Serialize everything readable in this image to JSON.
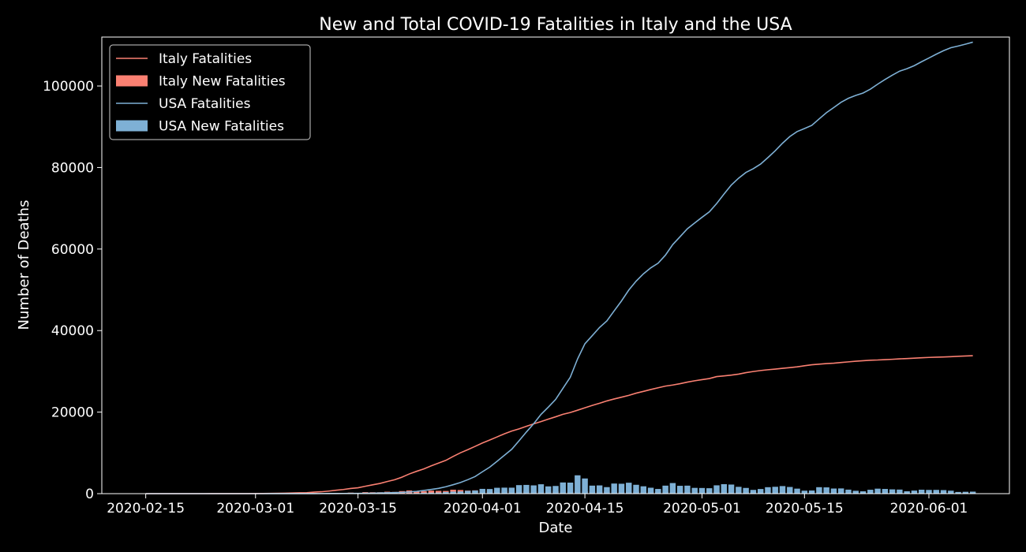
{
  "chart_data": {
    "type": "bar+line",
    "title": "New and Total COVID-19 Fatalities in Italy and the USA",
    "xlabel": "Date",
    "ylabel": "Number of Deaths",
    "x_start": "2020-02-15",
    "x_end": "2020-06-06",
    "xlim": [
      "2020-02-09",
      "2020-06-12"
    ],
    "ylim": [
      0,
      112000
    ],
    "x_ticks": [
      "2020-02-15",
      "2020-03-01",
      "2020-03-15",
      "2020-04-01",
      "2020-04-15",
      "2020-05-01",
      "2020-05-15",
      "2020-06-01"
    ],
    "y_ticks": [
      0,
      20000,
      40000,
      60000,
      80000,
      100000
    ],
    "legend_position": "top-left",
    "background": "#000000",
    "text_color": "#ffffff",
    "series": [
      {
        "name": "Italy Fatalities",
        "kind": "line",
        "color": "#fa8072",
        "values": [
          0,
          0,
          0,
          0,
          0,
          0,
          0,
          1,
          2,
          3,
          7,
          10,
          12,
          17,
          21,
          29,
          34,
          52,
          79,
          107,
          148,
          197,
          233,
          366,
          463,
          631,
          827,
          1016,
          1266,
          1441,
          1809,
          2158,
          2503,
          2978,
          3405,
          4032,
          4825,
          5476,
          6077,
          6820,
          7503,
          8165,
          9134,
          10023,
          10779,
          11591,
          12428,
          13155,
          13915,
          14681,
          15362,
          15887,
          16523,
          17127,
          17669,
          18279,
          18849,
          19468,
          19899,
          20465,
          21067,
          21645,
          22170,
          22745,
          23227,
          23660,
          24114,
          24648,
          25085,
          25549,
          25969,
          26384,
          26644,
          26977,
          27359,
          27682,
          27967,
          28236,
          28710,
          28884,
          29079,
          29315,
          29684,
          29958,
          30201,
          30395,
          30560,
          30739,
          30911,
          31106,
          31368,
          31610,
          31763,
          31908,
          32007,
          32169,
          32330,
          32486,
          32616,
          32735,
          32785,
          32877,
          32955,
          33072,
          33142,
          33229,
          33340,
          33415,
          33475,
          33530,
          33601,
          33689,
          33774,
          33846
        ]
      },
      {
        "name": "Italy New Fatalities",
        "kind": "bar",
        "color": "#fa8072",
        "values": [
          0,
          0,
          0,
          0,
          0,
          0,
          0,
          1,
          1,
          1,
          4,
          3,
          2,
          5,
          4,
          8,
          5,
          18,
          27,
          28,
          41,
          49,
          36,
          133,
          97,
          168,
          196,
          189,
          250,
          175,
          368,
          349,
          345,
          475,
          427,
          627,
          793,
          651,
          601,
          743,
          683,
          662,
          969,
          889,
          756,
          812,
          837,
          727,
          760,
          766,
          681,
          525,
          636,
          604,
          542,
          610,
          570,
          619,
          431,
          566,
          602,
          578,
          525,
          575,
          482,
          433,
          454,
          534,
          437,
          464,
          420,
          415,
          260,
          333,
          382,
          323,
          285,
          269,
          474,
          174,
          195,
          236,
          369,
          274,
          243,
          194,
          165,
          179,
          172,
          195,
          262,
          242,
          153,
          145,
          99,
          162,
          161,
          156,
          130,
          119,
          50,
          92,
          78,
          117,
          70,
          87,
          111,
          75,
          60,
          55,
          71,
          88,
          85,
          72
        ]
      },
      {
        "name": "USA Fatalities",
        "kind": "line",
        "color": "#7eb0d5",
        "values": [
          0,
          0,
          0,
          0,
          0,
          0,
          0,
          0,
          0,
          0,
          0,
          0,
          0,
          0,
          0,
          1,
          2,
          6,
          9,
          11,
          12,
          15,
          19,
          22,
          26,
          31,
          38,
          49,
          57,
          69,
          87,
          110,
          150,
          206,
          255,
          301,
          414,
          555,
          780,
          1027,
          1295,
          1695,
          2191,
          2727,
          3420,
          4196,
          5367,
          6501,
          7938,
          9408,
          10872,
          12964,
          15106,
          17135,
          19438,
          21221,
          23105,
          25848,
          28553,
          33051,
          36773,
          38742,
          40763,
          42364,
          44845,
          47273,
          49952,
          52125,
          53930,
          55382,
          56532,
          58496,
          61098,
          63022,
          64984,
          66400,
          67787,
          69116,
          71157,
          73477,
          75710,
          77383,
          78784,
          79705,
          80843,
          82425,
          84107,
          85962,
          87600,
          88829,
          89562,
          90338,
          91922,
          93460,
          94717,
          95998,
          96983,
          97689,
          98265,
          99221,
          100446,
          101595,
          102647,
          103648,
          104232,
          104988,
          105954,
          106867,
          107790,
          108660,
          109388,
          109802,
          110257,
          110755
        ]
      },
      {
        "name": "USA New Fatalities",
        "kind": "bar",
        "color": "#7eb0d5",
        "values": [
          0,
          0,
          0,
          0,
          0,
          0,
          0,
          0,
          0,
          0,
          0,
          0,
          0,
          0,
          0,
          1,
          1,
          4,
          3,
          2,
          1,
          3,
          4,
          3,
          4,
          5,
          7,
          11,
          8,
          12,
          18,
          23,
          40,
          56,
          49,
          46,
          113,
          141,
          225,
          247,
          268,
          400,
          496,
          536,
          693,
          776,
          1171,
          1134,
          1437,
          1470,
          1464,
          2092,
          2142,
          2029,
          2303,
          1783,
          1884,
          2743,
          2705,
          4498,
          3722,
          1969,
          2021,
          1601,
          2481,
          2428,
          2679,
          2173,
          1805,
          1452,
          1150,
          1964,
          2602,
          1924,
          1962,
          1416,
          1387,
          1329,
          2041,
          2320,
          2233,
          1673,
          1401,
          921,
          1138,
          1582,
          1682,
          1855,
          1638,
          1229,
          733,
          776,
          1584,
          1538,
          1257,
          1281,
          985,
          706,
          576,
          956,
          1225,
          1149,
          1052,
          1001,
          584,
          756,
          966,
          913,
          923,
          870,
          728,
          414,
          455,
          498
        ]
      }
    ]
  }
}
